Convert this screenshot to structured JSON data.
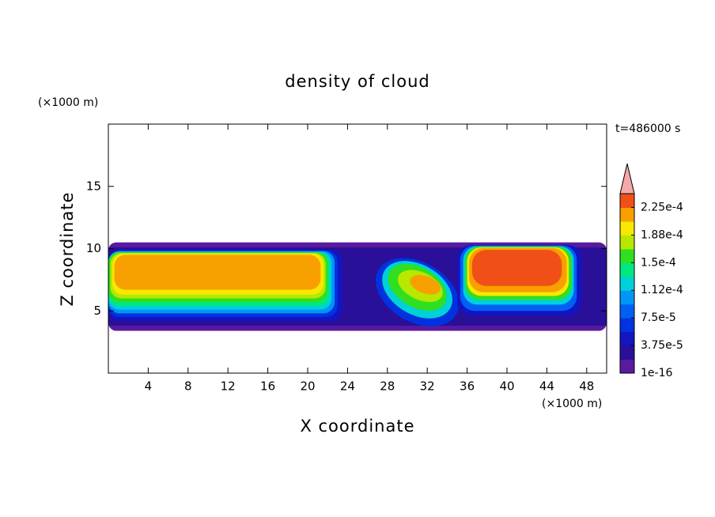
{
  "chart_data": {
    "type": "contour",
    "title": "density of cloud",
    "x_label": "X coordinate",
    "y_label": "Z coordinate",
    "x_unit": "(×1000 m)",
    "y_unit": "(×1000 m)",
    "time_label": "t=486000 s",
    "xlim": [
      0,
      50
    ],
    "xticks": [
      4,
      8,
      12,
      16,
      20,
      24,
      28,
      32,
      36,
      40,
      44,
      48
    ],
    "ylim": [
      0,
      20
    ],
    "yticks": [
      5,
      10,
      15
    ],
    "colorbar": {
      "clim": [
        1e-16,
        0.00024375
      ],
      "ticks": [
        {
          "value": 1e-16,
          "label": "1e-16"
        },
        {
          "value": 3.75e-05,
          "label": "3.75e-5"
        },
        {
          "value": 7.5e-05,
          "label": "7.5e-5"
        },
        {
          "value": 0.0001125,
          "label": "1.12e-4"
        },
        {
          "value": 0.00015,
          "label": "1.5e-4"
        },
        {
          "value": 0.0001875,
          "label": "1.88e-4"
        },
        {
          "value": 0.000225,
          "label": "2.25e-4"
        }
      ],
      "colors": [
        "#5a1aa0",
        "#2a0f98",
        "#1414c0",
        "#0032e0",
        "#0060f4",
        "#0096f8",
        "#00d0d8",
        "#00e880",
        "#30e020",
        "#b8e800",
        "#f8e800",
        "#f8a000",
        "#f05018"
      ],
      "over_color": "#f4a8a8"
    }
  }
}
